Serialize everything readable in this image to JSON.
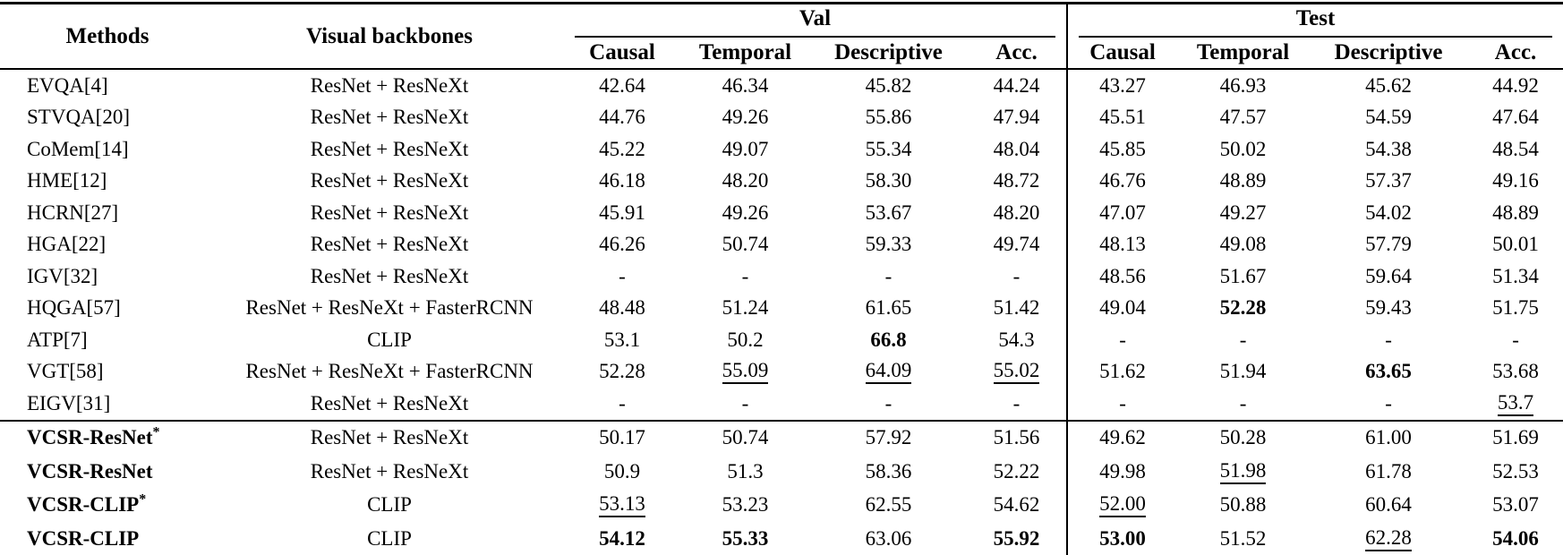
{
  "colors": {
    "text": "#000000",
    "background": "#ffffff",
    "rule": "#000000"
  },
  "header": {
    "methods": "Methods",
    "backbones": "Visual backbones",
    "groups": [
      {
        "label": "Val"
      },
      {
        "label": "Test"
      }
    ],
    "subcolumns": [
      "Causal",
      "Temporal",
      "Descriptive",
      "Acc."
    ]
  },
  "baseline_rows": [
    {
      "method": "EVQA[4]",
      "sup": "",
      "method_bold": false,
      "backbone": "ResNet + ResNeXt",
      "values": [
        "42.64",
        "46.34",
        "45.82",
        "44.24",
        "43.27",
        "46.93",
        "45.62",
        "44.92"
      ],
      "styles": [
        "",
        "",
        "",
        "",
        "",
        "",
        "",
        ""
      ]
    },
    {
      "method": "STVQA[20]",
      "sup": "",
      "method_bold": false,
      "backbone": "ResNet + ResNeXt",
      "values": [
        "44.76",
        "49.26",
        "55.86",
        "47.94",
        "45.51",
        "47.57",
        "54.59",
        "47.64"
      ],
      "styles": [
        "",
        "",
        "",
        "",
        "",
        "",
        "",
        ""
      ]
    },
    {
      "method": "CoMem[14]",
      "sup": "",
      "method_bold": false,
      "backbone": "ResNet + ResNeXt",
      "values": [
        "45.22",
        "49.07",
        "55.34",
        "48.04",
        "45.85",
        "50.02",
        "54.38",
        "48.54"
      ],
      "styles": [
        "",
        "",
        "",
        "",
        "",
        "",
        "",
        ""
      ]
    },
    {
      "method": "HME[12]",
      "sup": "",
      "method_bold": false,
      "backbone": "ResNet + ResNeXt",
      "values": [
        "46.18",
        "48.20",
        "58.30",
        "48.72",
        "46.76",
        "48.89",
        "57.37",
        "49.16"
      ],
      "styles": [
        "",
        "",
        "",
        "",
        "",
        "",
        "",
        ""
      ]
    },
    {
      "method": "HCRN[27]",
      "sup": "",
      "method_bold": false,
      "backbone": "ResNet + ResNeXt",
      "values": [
        "45.91",
        "49.26",
        "53.67",
        "48.20",
        "47.07",
        "49.27",
        "54.02",
        "48.89"
      ],
      "styles": [
        "",
        "",
        "",
        "",
        "",
        "",
        "",
        ""
      ]
    },
    {
      "method": "HGA[22]",
      "sup": "",
      "method_bold": false,
      "backbone": "ResNet + ResNeXt",
      "values": [
        "46.26",
        "50.74",
        "59.33",
        "49.74",
        "48.13",
        "49.08",
        "57.79",
        "50.01"
      ],
      "styles": [
        "",
        "",
        "",
        "",
        "",
        "",
        "",
        ""
      ]
    },
    {
      "method": "IGV[32]",
      "sup": "",
      "method_bold": false,
      "backbone": "ResNet + ResNeXt",
      "values": [
        "-",
        "-",
        "-",
        "-",
        "48.56",
        "51.67",
        "59.64",
        "51.34"
      ],
      "styles": [
        "",
        "",
        "",
        "",
        "",
        "",
        "",
        ""
      ]
    },
    {
      "method": "HQGA[57]",
      "sup": "",
      "method_bold": false,
      "backbone": "ResNet + ResNeXt + FasterRCNN",
      "values": [
        "48.48",
        "51.24",
        "61.65",
        "51.42",
        "49.04",
        "52.28",
        "59.43",
        "51.75"
      ],
      "styles": [
        "",
        "",
        "",
        "",
        "",
        "b",
        "",
        ""
      ]
    },
    {
      "method": "ATP[7]",
      "sup": "",
      "method_bold": false,
      "backbone": "CLIP",
      "values": [
        "53.1",
        "50.2",
        "66.8",
        "54.3",
        "-",
        "-",
        "-",
        "-"
      ],
      "styles": [
        "",
        "",
        "b",
        "",
        "",
        "",
        "",
        ""
      ]
    },
    {
      "method": "VGT[58]",
      "sup": "",
      "method_bold": false,
      "backbone": "ResNet + ResNeXt + FasterRCNN",
      "values": [
        "52.28",
        "55.09",
        "64.09",
        "55.02",
        "51.62",
        "51.94",
        "63.65",
        "53.68"
      ],
      "styles": [
        "",
        "u",
        "u",
        "u",
        "",
        "",
        "b",
        ""
      ]
    },
    {
      "method": "EIGV[31]",
      "sup": "",
      "method_bold": false,
      "backbone": "ResNet + ResNeXt",
      "values": [
        "-",
        "-",
        "-",
        "-",
        "-",
        "-",
        "-",
        "53.7"
      ],
      "styles": [
        "",
        "",
        "",
        "",
        "",
        "",
        "",
        "u"
      ]
    }
  ],
  "vcsr_rows": [
    {
      "method": "VCSR-ResNet",
      "sup": "*",
      "method_bold": true,
      "backbone": "ResNet + ResNeXt",
      "values": [
        "50.17",
        "50.74",
        "57.92",
        "51.56",
        "49.62",
        "50.28",
        "61.00",
        "51.69"
      ],
      "styles": [
        "",
        "",
        "",
        "",
        "",
        "",
        "",
        ""
      ]
    },
    {
      "method": "VCSR-ResNet",
      "sup": "",
      "method_bold": true,
      "backbone": "ResNet + ResNeXt",
      "values": [
        "50.9",
        "51.3",
        "58.36",
        "52.22",
        "49.98",
        "51.98",
        "61.78",
        "52.53"
      ],
      "styles": [
        "",
        "",
        "",
        "",
        "",
        "u",
        "",
        ""
      ]
    },
    {
      "method": "VCSR-CLIP",
      "sup": "*",
      "method_bold": true,
      "backbone": "CLIP",
      "values": [
        "53.13",
        "53.23",
        "62.55",
        "54.62",
        "52.00",
        "50.88",
        "60.64",
        "53.07"
      ],
      "styles": [
        "u",
        "",
        "",
        "",
        "u",
        "",
        "",
        ""
      ]
    },
    {
      "method": "VCSR-CLIP",
      "sup": "",
      "method_bold": true,
      "backbone": "CLIP",
      "values": [
        "54.12",
        "55.33",
        "63.06",
        "55.92",
        "53.00",
        "51.52",
        "62.28",
        "54.06"
      ],
      "styles": [
        "b",
        "b",
        "",
        "b",
        "b",
        "",
        "u",
        "b"
      ]
    }
  ]
}
